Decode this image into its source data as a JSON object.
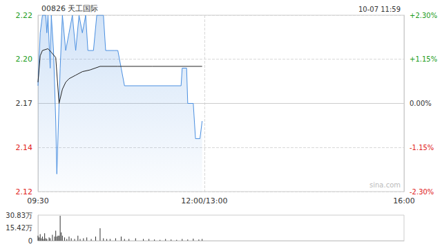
{
  "chart_data": [
    {
      "type": "line",
      "title": "00826 天工国际",
      "subtitle": "10-07 11:59",
      "annotations": [
        "sina.com"
      ],
      "grid": true,
      "xlim": [
        0,
        330
      ],
      "xticks": [
        {
          "value": 0,
          "label": "09:30"
        },
        {
          "value": 150,
          "label": "12:00/13:00"
        },
        {
          "value": 330,
          "label": "16:00"
        }
      ],
      "ylim": [
        2.12,
        2.22
      ],
      "yticks": [
        2.12,
        {
          "value": 2.1449,
          "label": "2.14"
        },
        2.17,
        {
          "value": 2.1951,
          "label": "2.20"
        },
        2.22
      ],
      "y2lim": [
        -2.3,
        2.3
      ],
      "y2ticks": [
        {
          "value": -2.3,
          "label": "-2.30%"
        },
        {
          "value": -1.15,
          "label": "-1.15%"
        },
        {
          "value": 0,
          "label": "0.00%"
        },
        {
          "value": 1.15,
          "label": "+1.15%"
        },
        {
          "value": 2.3,
          "label": "+2.30%"
        }
      ],
      "series": [
        {
          "type": "area",
          "color": "#4a8fe0",
          "x": [
            0,
            2,
            4,
            7,
            8,
            9,
            11,
            12,
            14,
            16,
            17,
            19,
            20,
            22,
            25,
            28,
            31,
            34,
            37,
            40,
            43,
            45,
            50,
            53,
            59,
            61,
            69,
            72,
            75,
            78,
            129,
            130,
            134,
            135,
            140,
            142,
            146,
            148
          ],
          "values": [
            2.18,
            2.21,
            2.22,
            2.22,
            2.21,
            2.22,
            2.19,
            2.22,
            2.2,
            2.16,
            2.13,
            2.17,
            2.19,
            2.22,
            2.2,
            2.21,
            2.22,
            2.2,
            2.22,
            2.21,
            2.22,
            2.2,
            2.2,
            2.22,
            2.22,
            2.2,
            2.2,
            2.2,
            2.19,
            2.18,
            2.18,
            2.19,
            2.19,
            2.17,
            2.17,
            2.15,
            2.15,
            2.16
          ]
        },
        {
          "type": "line",
          "color": "#222222",
          "x": [
            0,
            2,
            4,
            9,
            12,
            16,
            19,
            22,
            25,
            28,
            34,
            40,
            47,
            56,
            72,
            103,
            148
          ],
          "values": [
            2.182,
            2.197,
            2.2,
            2.201,
            2.199,
            2.196,
            2.17,
            2.178,
            2.182,
            2.184,
            2.186,
            2.188,
            2.189,
            2.191,
            2.191,
            2.191,
            2.191
          ]
        }
      ]
    },
    {
      "type": "bar",
      "color": "#333333",
      "tick_labels": "y",
      "xlim": [
        0,
        330
      ],
      "ylim": [
        0,
        308300
      ],
      "yticks": [
        0,
        {
          "value": 154200,
          "label": "15.42万"
        },
        {
          "value": 308300,
          "label": "30.83万"
        }
      ],
      "x": [
        0,
        1,
        2,
        3,
        4,
        5,
        6,
        7,
        8,
        10,
        11,
        13,
        15,
        16,
        17,
        18,
        19,
        20,
        21,
        22,
        24,
        26,
        28,
        30,
        33,
        36,
        38,
        41,
        44,
        48,
        52,
        56,
        59,
        62,
        65,
        70,
        75,
        78,
        82,
        88,
        95,
        100,
        105,
        110,
        115,
        120,
        125,
        130,
        135,
        140,
        145,
        148
      ],
      "values": [
        60000,
        40000,
        80000,
        30000,
        50000,
        20000,
        90000,
        30000,
        20000,
        40000,
        30000,
        70000,
        50000,
        120000,
        50000,
        60000,
        60000,
        300000,
        100000,
        60000,
        40000,
        20000,
        50000,
        30000,
        20000,
        60000,
        20000,
        30000,
        40000,
        20000,
        50000,
        150000,
        30000,
        20000,
        20000,
        30000,
        50000,
        20000,
        20000,
        30000,
        20000,
        20000,
        15000,
        10000,
        20000,
        15000,
        10000,
        20000,
        15000,
        25000,
        15000,
        20000
      ]
    }
  ]
}
